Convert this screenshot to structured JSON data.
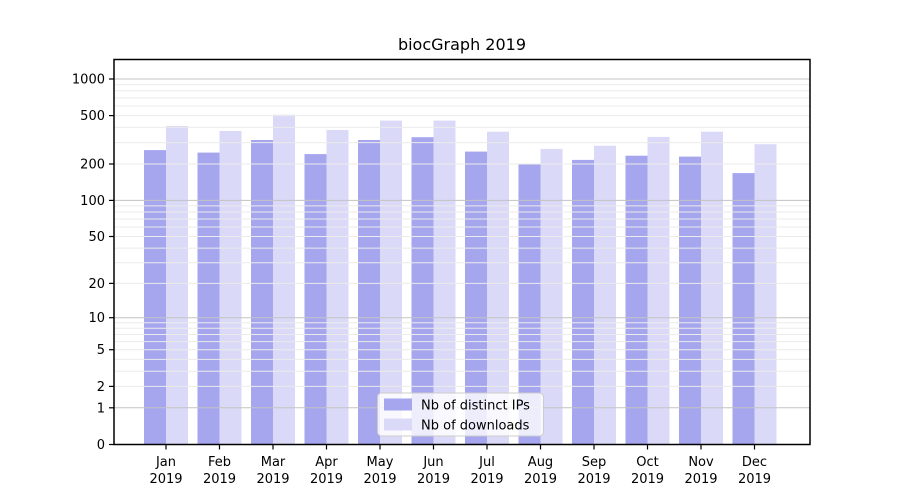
{
  "chart": {
    "title": "biocGraph 2019",
    "chart_data": {
      "type": "bar",
      "categories": [
        "Jan",
        "Feb",
        "Mar",
        "Apr",
        "May",
        "Jun",
        "Jul",
        "Aug",
        "Sep",
        "Oct",
        "Nov",
        "Dec"
      ],
      "category_year": "2019",
      "series": [
        {
          "name": "Nb of distinct IPs",
          "color": "#a6a6ee",
          "values": [
            260,
            248,
            315,
            241,
            315,
            332,
            253,
            200,
            216,
            234,
            230,
            168
          ]
        },
        {
          "name": "Nb of downloads",
          "color": "#dadaf8",
          "values": [
            411,
            374,
            509,
            381,
            455,
            455,
            369,
            266,
            283,
            334,
            369,
            291
          ]
        }
      ],
      "title": "biocGraph 2019",
      "xlabel": "",
      "ylabel": "",
      "y_axis": {
        "scale": "log1p",
        "tick_values": [
          0,
          1,
          2,
          5,
          10,
          20,
          50,
          100,
          200,
          500,
          1000
        ],
        "range": [
          0,
          1440
        ],
        "grid": true,
        "grid_major_values": [
          1,
          10,
          100,
          1000
        ],
        "grid_major_color": "#c3c3c3",
        "grid_minor_color": "#ebebeb"
      },
      "legend": {
        "position": "lower center",
        "entries": [
          "Nb of distinct IPs",
          "Nb of downloads"
        ],
        "background": "rgba(255,255,255,0.8)",
        "border_color": "#cccccc"
      },
      "axis_color": "#000000",
      "text_color": "#000000",
      "background_color": "#ffffff"
    }
  }
}
